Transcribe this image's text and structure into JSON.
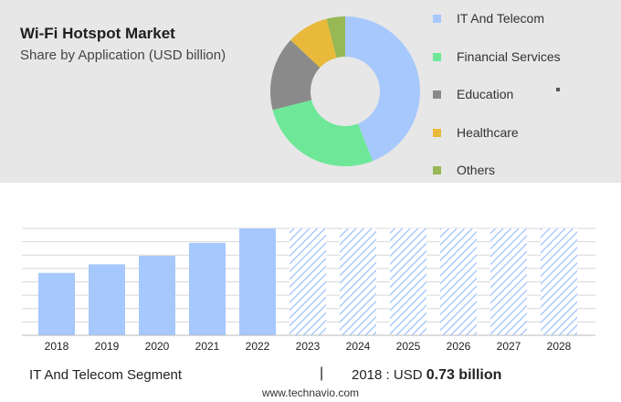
{
  "header": {
    "title": "Wi-Fi Hotspot Market",
    "subtitle": "Share by Application (USD billion)"
  },
  "legend": [
    {
      "label": "IT And Telecom",
      "color": "#a6c8fc"
    },
    {
      "label": "Financial Services",
      "color": "#6ee898"
    },
    {
      "label": "Education",
      "color": "#8a8a8a"
    },
    {
      "label": "Healthcare",
      "color": "#e8b93a"
    },
    {
      "label": "Others",
      "color": "#97b855"
    }
  ],
  "footer": {
    "segment": "IT And Telecom Segment",
    "divider": "|",
    "year_label": "2018 : USD ",
    "value": "0.73 billion",
    "source": "www.technavio.com"
  },
  "chart_data": [
    {
      "type": "pie",
      "title": "Wi-Fi Hotspot Market",
      "subtitle": "Share by Application (USD billion)",
      "donut": true,
      "categories": [
        "IT And Telecom",
        "Financial Services",
        "Education",
        "Healthcare",
        "Others"
      ],
      "values": [
        44,
        27,
        16,
        9,
        4
      ],
      "colors": [
        "#a6c8fc",
        "#6ee898",
        "#8a8a8a",
        "#e8b93a",
        "#97b855"
      ]
    },
    {
      "type": "bar",
      "title": "IT And Telecom Segment",
      "categories": [
        "2018",
        "2019",
        "2020",
        "2021",
        "2022",
        "2023",
        "2024",
        "2025",
        "2026",
        "2027",
        "2028"
      ],
      "values": [
        0.73,
        0.83,
        0.93,
        1.08,
        1.25,
        1.25,
        1.25,
        1.25,
        1.25,
        1.25,
        1.25
      ],
      "forecast_from": "2023",
      "ylim": [
        0,
        1.25
      ],
      "grid": true,
      "bar_color": "#a6c8fc",
      "forecast_style": "hatched"
    }
  ]
}
